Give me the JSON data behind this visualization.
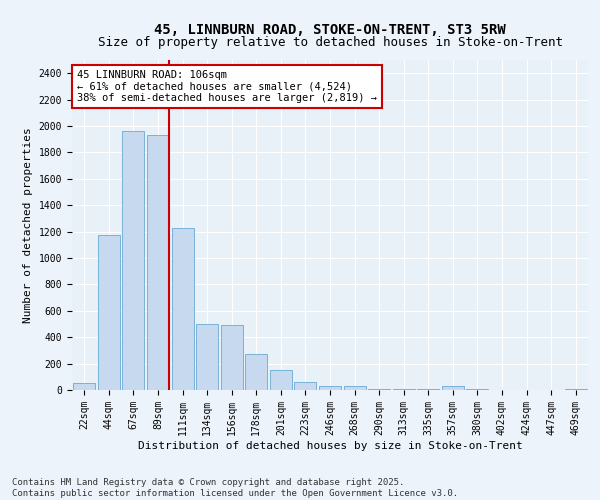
{
  "title_line1": "45, LINNBURN ROAD, STOKE-ON-TRENT, ST3 5RW",
  "title_line2": "Size of property relative to detached houses in Stoke-on-Trent",
  "xlabel": "Distribution of detached houses by size in Stoke-on-Trent",
  "ylabel": "Number of detached properties",
  "bar_color": "#c6d9ee",
  "bar_edge_color": "#6aaad4",
  "bg_color": "#e8f0f8",
  "grid_color": "#ffffff",
  "fig_bg_color": "#edf3fa",
  "categories": [
    "22sqm",
    "44sqm",
    "67sqm",
    "89sqm",
    "111sqm",
    "134sqm",
    "156sqm",
    "178sqm",
    "201sqm",
    "223sqm",
    "246sqm",
    "268sqm",
    "290sqm",
    "313sqm",
    "335sqm",
    "357sqm",
    "380sqm",
    "402sqm",
    "424sqm",
    "447sqm",
    "469sqm"
  ],
  "values": [
    50,
    1175,
    1960,
    1930,
    1230,
    500,
    490,
    270,
    155,
    60,
    30,
    28,
    5,
    10,
    5,
    28,
    5,
    2,
    2,
    2,
    5
  ],
  "vline_color": "#cc0000",
  "annotation_text": "45 LINNBURN ROAD: 106sqm\n← 61% of detached houses are smaller (4,524)\n38% of semi-detached houses are larger (2,819) →",
  "annotation_box_color": "#cc0000",
  "ylim": [
    0,
    2500
  ],
  "yticks": [
    0,
    200,
    400,
    600,
    800,
    1000,
    1200,
    1400,
    1600,
    1800,
    2000,
    2200,
    2400
  ],
  "footer_line1": "Contains HM Land Registry data © Crown copyright and database right 2025.",
  "footer_line2": "Contains public sector information licensed under the Open Government Licence v3.0.",
  "title_fontsize": 10,
  "subtitle_fontsize": 9,
  "axis_label_fontsize": 8,
  "tick_fontsize": 7,
  "annotation_fontsize": 7.5,
  "footer_fontsize": 6.5
}
